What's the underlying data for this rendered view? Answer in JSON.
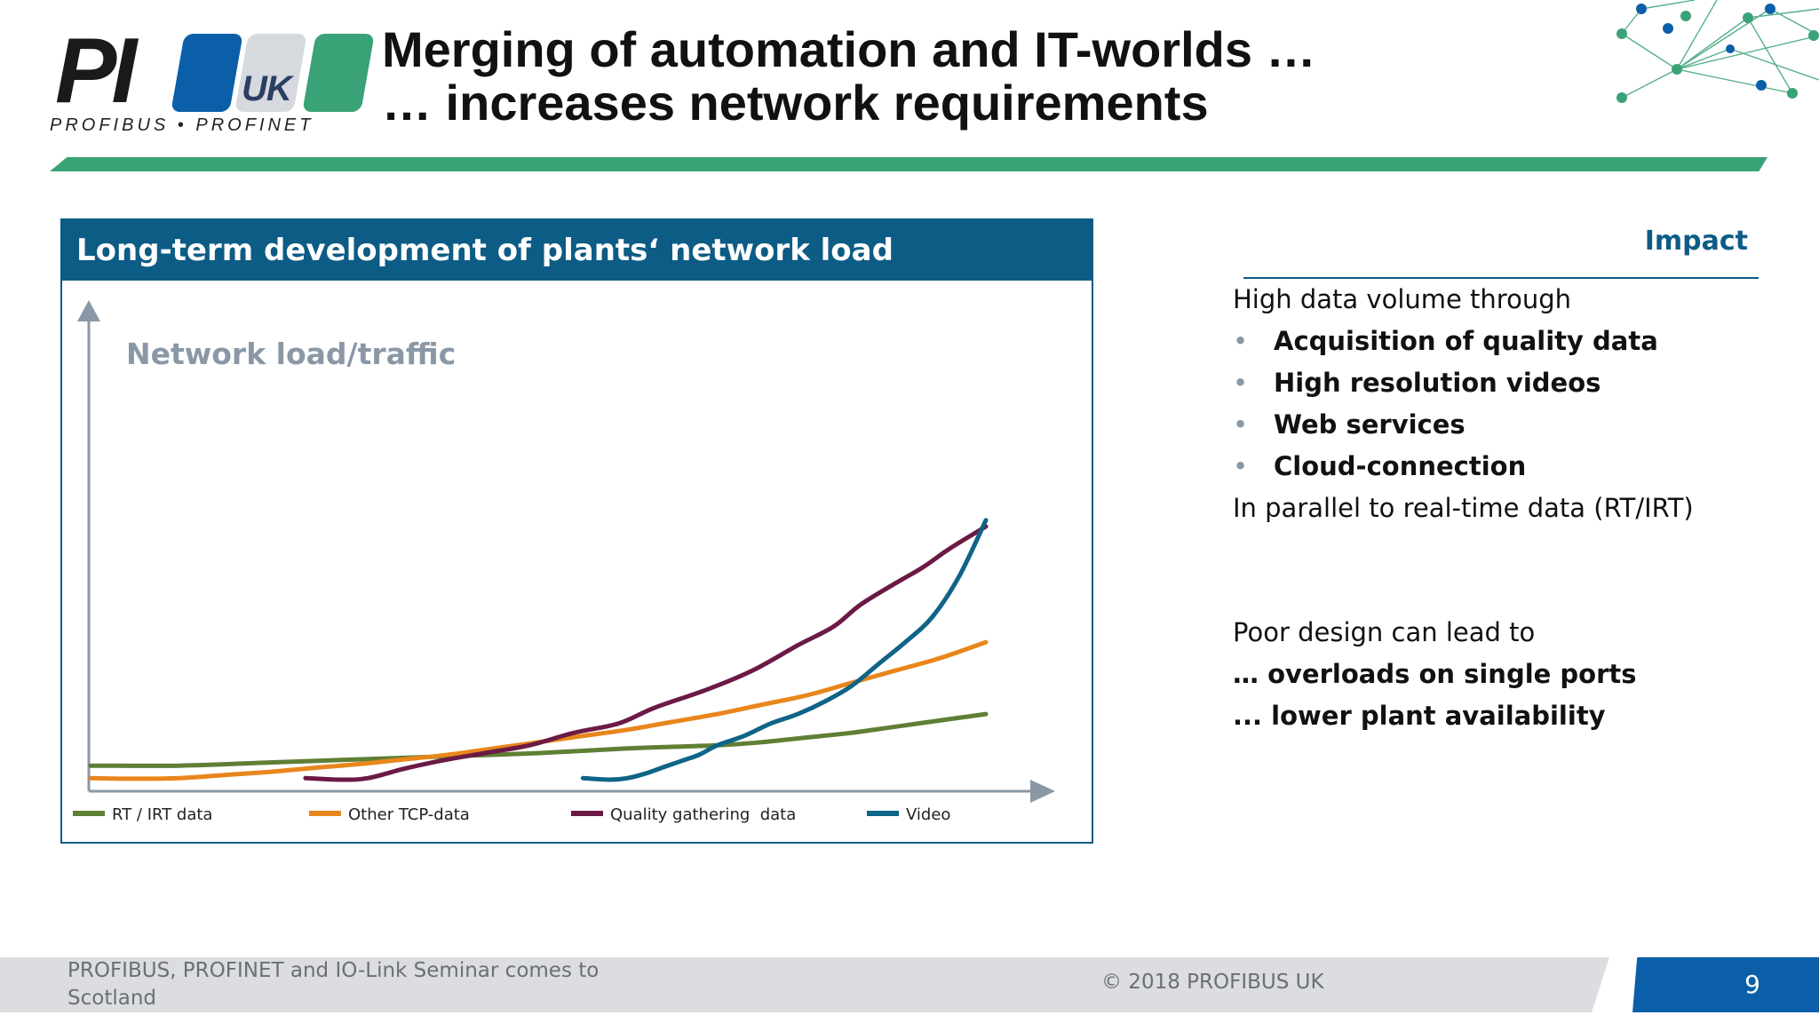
{
  "logo": {
    "mark": "PI",
    "country": "UK",
    "tagline": "PROFIBUS • PROFINET"
  },
  "header": {
    "title_line1": "Merging of automation and IT-worlds …",
    "title_line2": "… increases network requirements"
  },
  "panel": {
    "title": "Long-term development of plants‘ network load"
  },
  "chart_data": {
    "type": "line",
    "title": "Long-term development of plants‘ network load",
    "ylabel": "Network load/traffic",
    "xlabel": "",
    "xlim": [
      0,
      100
    ],
    "ylim": [
      0,
      100
    ],
    "grid": false,
    "legend_position": "bottom",
    "series": [
      {
        "name": "RT / IRT data",
        "color": "#5f7f35",
        "x": [
          0,
          10,
          20,
          30,
          40,
          50,
          60,
          70,
          75,
          80,
          85,
          90,
          95,
          100
        ],
        "y": [
          4.5,
          4.5,
          5.5,
          6.5,
          7.5,
          8.5,
          10,
          11,
          12,
          13.5,
          15,
          17,
          19,
          21
        ]
      },
      {
        "name": "Other TCP-data",
        "color": "#e8861c",
        "x": [
          0,
          5,
          10,
          15,
          20,
          25,
          30,
          35,
          40,
          45,
          50,
          55,
          60,
          65,
          70,
          75,
          80,
          85,
          90,
          95,
          100
        ],
        "y": [
          0.5,
          0.3,
          0.5,
          1.5,
          2.5,
          3.8,
          5,
          6.5,
          8,
          10,
          12,
          14,
          16,
          18.5,
          21,
          24,
          27,
          31,
          35,
          39,
          44
        ]
      },
      {
        "name": "Quality gathering  data",
        "color": "#6b1a45",
        "x": [
          24,
          28,
          31,
          35,
          39,
          44,
          49,
          54,
          59,
          63,
          69,
          74,
          79,
          83,
          86,
          90,
          93,
          96,
          100
        ],
        "y": [
          0.5,
          0,
          0.5,
          3.5,
          6,
          8.5,
          11,
          15,
          18,
          23,
          29,
          35,
          43,
          49,
          56,
          63,
          68,
          74,
          81
        ]
      },
      {
        "name": "Video",
        "color": "#0f6487",
        "x": [
          55,
          58,
          60,
          62,
          64,
          66,
          68,
          70,
          73,
          76,
          79,
          82,
          85,
          88,
          91,
          94,
          97,
          100
        ],
        "y": [
          0.5,
          0,
          0.5,
          2,
          4,
          6,
          8,
          11,
          14,
          18,
          21,
          25,
          30,
          37,
          44,
          52,
          65,
          83
        ]
      }
    ]
  },
  "impact": {
    "title": "Impact",
    "intro": "High data volume through",
    "bullets": [
      "Acquisition of quality data",
      "High resolution videos",
      "Web services",
      "Cloud-connection"
    ],
    "parallel": "In parallel to real-time data (RT/IRT)",
    "poor_intro": "Poor design can lead to",
    "consequences": [
      "… overloads on single ports",
      "... lower plant availability"
    ]
  },
  "footer": {
    "seminar": "PROFIBUS, PROFINET and IO-Link Seminar comes to Scotland",
    "copyright": "© 2018   PROFIBUS UK",
    "page": "9"
  }
}
